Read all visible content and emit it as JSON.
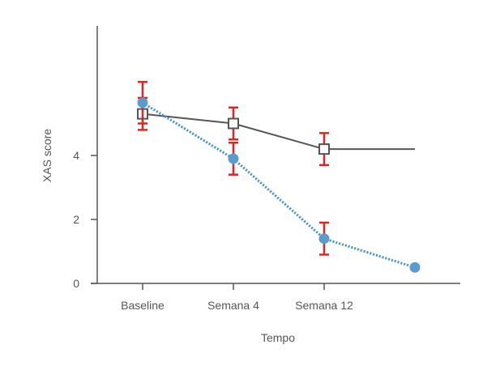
{
  "chart_data": {
    "type": "line",
    "title": "",
    "xlabel": "Tempo",
    "ylabel": "XAS score",
    "ylim": [
      0,
      8
    ],
    "yticks": [
      0,
      2,
      4
    ],
    "categories": [
      "Baseline",
      "Semana 4",
      "Semana 12",
      ""
    ],
    "series": [
      {
        "name": "series-gray",
        "line_color": "#555555",
        "marker": "square",
        "marker_fill": "#ffffff",
        "line_style": "solid",
        "values": [
          5.3,
          5.0,
          4.2,
          4.2
        ],
        "error": [
          0.5,
          0.5,
          0.5,
          null
        ]
      },
      {
        "name": "series-blue",
        "line_color": "#3d8fcf",
        "marker": "circle",
        "marker_fill": "#5b9bd0",
        "line_style": "dotted",
        "values": [
          5.65,
          3.9,
          1.4,
          0.5
        ],
        "error": [
          0.65,
          0.5,
          0.5,
          null
        ]
      }
    ],
    "error_bar_color": "#e02424",
    "axis_color": "#555555"
  }
}
